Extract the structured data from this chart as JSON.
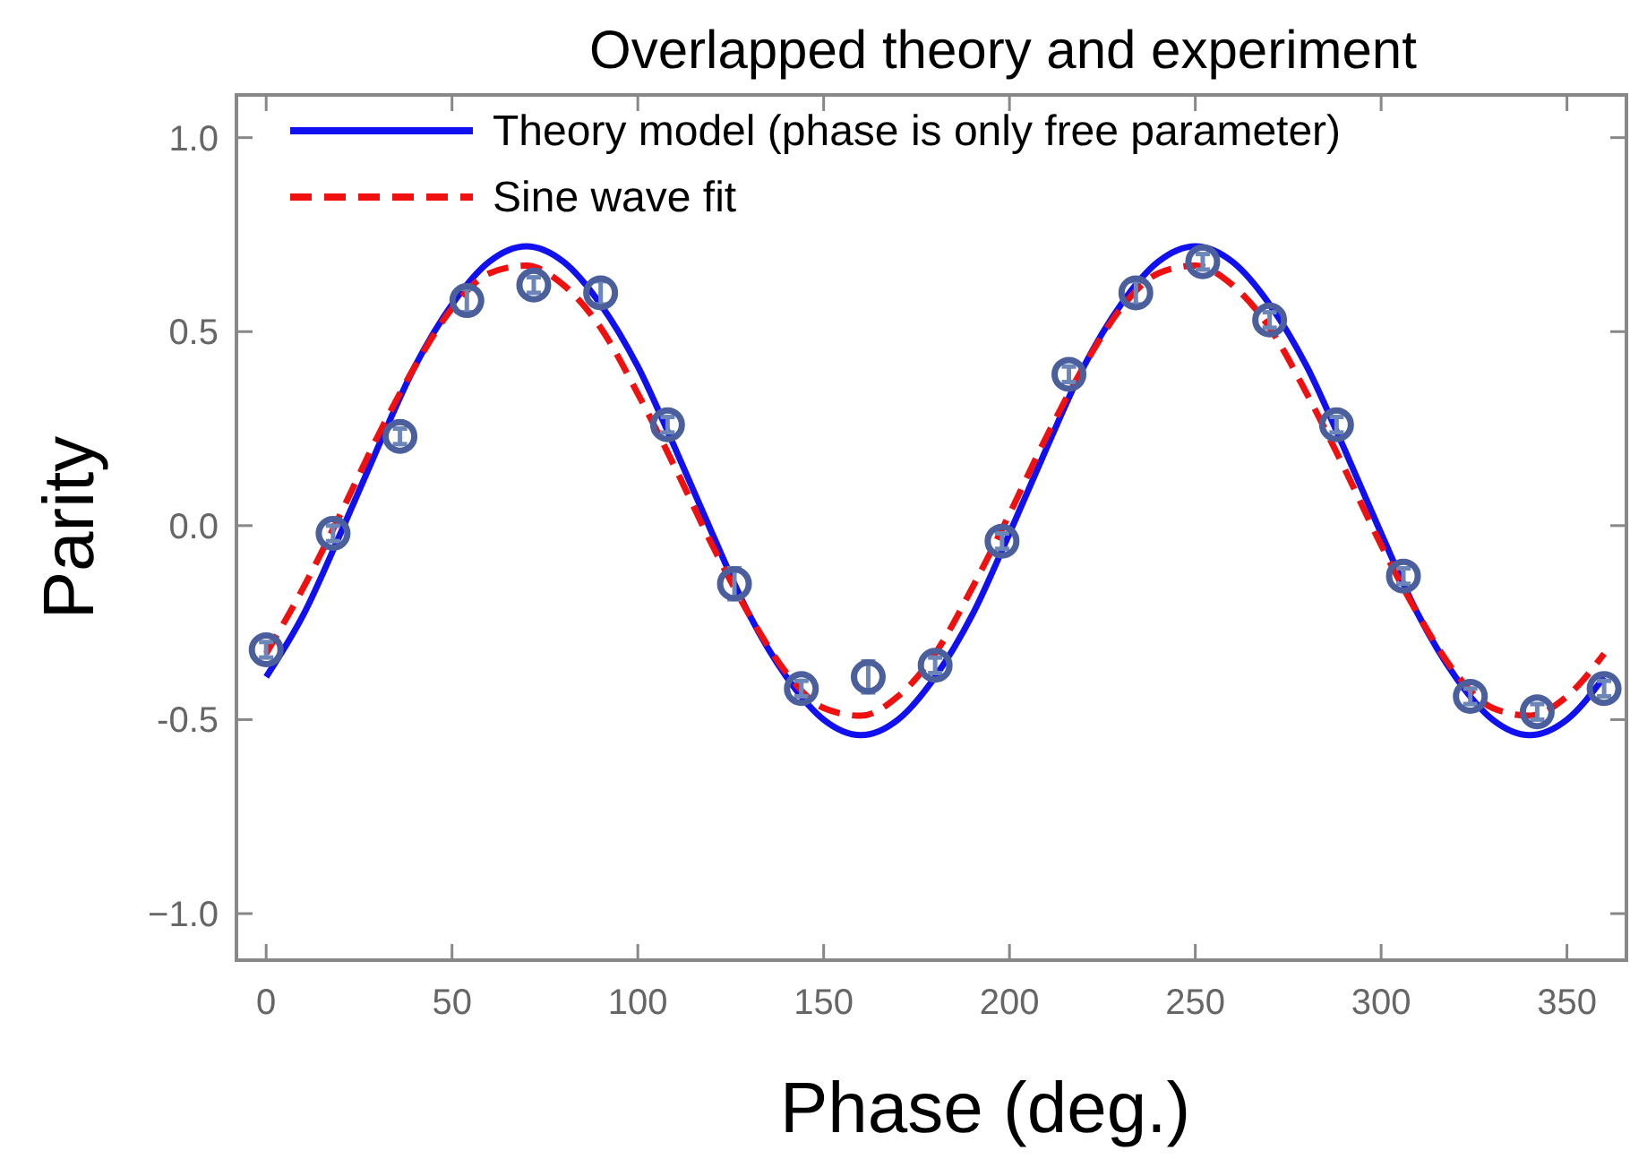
{
  "chart_data": {
    "type": "line",
    "title": "Overlapped theory and experiment",
    "xlabel": "Phase (deg.)",
    "ylabel": "Parity",
    "xlim": [
      -8,
      366
    ],
    "ylim": [
      -1.12,
      1.11
    ],
    "xticks": [
      0,
      50,
      100,
      150,
      200,
      250,
      300,
      350
    ],
    "yticks": [
      {
        "value": -1,
        "label": "−1.0"
      },
      {
        "value": -0.5,
        "label": "-0.5"
      },
      {
        "value": 0,
        "label": "0.0"
      },
      {
        "value": 0.5,
        "label": "0.5"
      },
      {
        "value": 1,
        "label": "1.0"
      }
    ],
    "grid": false,
    "legend": "top left",
    "series": [
      {
        "name": "Theory model (phase is only free parameter)",
        "color": "#1010f0",
        "line_style": "solid",
        "marker": "none",
        "x": [
          0,
          10,
          20,
          30,
          40,
          50,
          60,
          70,
          80,
          90,
          100,
          110,
          120,
          130,
          140,
          150,
          160,
          170,
          180,
          190,
          200,
          210,
          220,
          230,
          240,
          250,
          260,
          270,
          280,
          290,
          300,
          310,
          320,
          330,
          340,
          350,
          360
        ],
        "values": [
          -0.39,
          -0.23,
          -0.02,
          0.2,
          0.41,
          0.57,
          0.68,
          0.72,
          0.68,
          0.57,
          0.41,
          0.2,
          -0.02,
          -0.23,
          -0.39,
          -0.5,
          -0.54,
          -0.5,
          -0.39,
          -0.23,
          -0.02,
          0.2,
          0.41,
          0.57,
          0.68,
          0.72,
          0.68,
          0.57,
          0.41,
          0.2,
          -0.02,
          -0.23,
          -0.39,
          -0.5,
          -0.54,
          -0.5,
          -0.39
        ]
      },
      {
        "name": "Sine wave fit",
        "color": "#f01010",
        "line_style": "dashed",
        "marker": "none",
        "x": [
          0,
          10,
          20,
          30,
          40,
          50,
          60,
          70,
          80,
          90,
          100,
          110,
          120,
          130,
          140,
          150,
          160,
          170,
          180,
          190,
          200,
          210,
          220,
          230,
          240,
          250,
          260,
          270,
          280,
          290,
          300,
          310,
          320,
          330,
          340,
          350,
          360
        ],
        "values": [
          -0.33,
          -0.16,
          0.03,
          0.23,
          0.41,
          0.56,
          0.65,
          0.67,
          0.62,
          0.51,
          0.34,
          0.15,
          -0.05,
          -0.23,
          -0.38,
          -0.47,
          -0.49,
          -0.44,
          -0.33,
          -0.16,
          0.03,
          0.23,
          0.41,
          0.56,
          0.65,
          0.67,
          0.62,
          0.51,
          0.34,
          0.15,
          -0.05,
          -0.23,
          -0.38,
          -0.47,
          -0.49,
          -0.44,
          -0.33
        ]
      },
      {
        "type": "scatter",
        "color": "#4a5f9c",
        "marker": "circle",
        "x": [
          0,
          18,
          36,
          54,
          72,
          90,
          108,
          126,
          144,
          162,
          180,
          198,
          216,
          234,
          252,
          270,
          288,
          306,
          324,
          342,
          360
        ],
        "values": [
          -0.32,
          -0.02,
          0.23,
          0.58,
          0.62,
          0.6,
          0.26,
          -0.15,
          -0.42,
          -0.39,
          -0.36,
          -0.04,
          0.39,
          0.6,
          0.68,
          0.53,
          0.26,
          -0.13,
          -0.44,
          -0.48,
          -0.42
        ],
        "errors": [
          0.02,
          0.02,
          0.02,
          0.03,
          0.02,
          0.03,
          0.02,
          0.04,
          0.02,
          0.04,
          0.02,
          0.02,
          0.02,
          0.03,
          0.02,
          0.02,
          0.02,
          0.02,
          0.02,
          0.02,
          0.02
        ]
      }
    ]
  }
}
